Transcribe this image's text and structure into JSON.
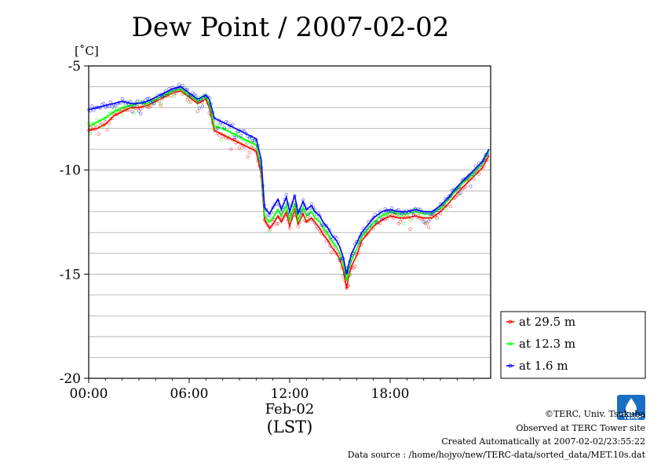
{
  "chart_data": {
    "type": "line",
    "title": "Dew Point / 2007-02-02",
    "ylabel": "[˚C]",
    "xlabel": "(LST)",
    "x_date_label": "Feb-02",
    "ylim": [
      -20,
      -5
    ],
    "xlim_hours": [
      0,
      24
    ],
    "y_ticks": [
      "-5",
      "-10",
      "-15",
      "-20"
    ],
    "y_tick_values": [
      -5,
      -10,
      -15,
      -20
    ],
    "x_ticks": [
      "00:00",
      "06:00",
      "12:00",
      "18:00"
    ],
    "x_tick_values": [
      0,
      6,
      12,
      18
    ],
    "grid": true,
    "legend_position": "bottom-right-outside",
    "x": [
      0,
      0.5,
      1,
      1.5,
      2,
      2.5,
      3,
      3.5,
      4,
      4.5,
      5,
      5.5,
      6,
      6.5,
      7,
      7.2,
      7.5,
      8,
      8.5,
      9,
      9.5,
      10,
      10.3,
      10.5,
      10.8,
      11,
      11.3,
      11.5,
      11.8,
      12,
      12.3,
      12.5,
      12.8,
      13,
      13.3,
      13.5,
      13.8,
      14,
      14.3,
      14.5,
      14.8,
      15,
      15.2,
      15.4,
      15.5,
      15.7,
      16,
      16.3,
      16.5,
      17,
      17.5,
      18,
      18.5,
      19,
      19.5,
      20,
      20.5,
      21,
      21.5,
      22,
      22.5,
      23,
      23.5,
      23.9
    ],
    "series": [
      {
        "name": "at 29.5 m",
        "color": "#ff0000",
        "values": [
          -8.1,
          -8.0,
          -7.8,
          -7.4,
          -7.2,
          -7.0,
          -7.0,
          -6.9,
          -6.7,
          -6.5,
          -6.3,
          -6.2,
          -6.5,
          -6.8,
          -6.6,
          -7.0,
          -8.1,
          -8.3,
          -8.5,
          -8.7,
          -8.9,
          -9.1,
          -10.2,
          -12.4,
          -12.8,
          -12.6,
          -12.2,
          -12.5,
          -12.0,
          -12.7,
          -11.9,
          -12.6,
          -12.1,
          -12.5,
          -12.3,
          -12.5,
          -12.8,
          -13.1,
          -13.4,
          -13.7,
          -14.0,
          -14.3,
          -14.8,
          -15.7,
          -15.2,
          -14.6,
          -14.1,
          -13.4,
          -13.2,
          -12.7,
          -12.4,
          -12.2,
          -12.3,
          -12.3,
          -12.2,
          -12.3,
          -12.3,
          -12.0,
          -11.6,
          -11.1,
          -10.7,
          -10.3,
          -9.9,
          -9.3
        ]
      },
      {
        "name": "at 12.3 m",
        "color": "#00ff00",
        "values": [
          -7.9,
          -7.7,
          -7.5,
          -7.2,
          -7.0,
          -6.9,
          -6.8,
          -6.8,
          -6.6,
          -6.4,
          -6.2,
          -6.1,
          -6.4,
          -6.7,
          -6.5,
          -6.8,
          -7.9,
          -8.0,
          -8.2,
          -8.4,
          -8.6,
          -8.8,
          -9.9,
          -12.2,
          -12.5,
          -12.3,
          -11.9,
          -12.2,
          -11.7,
          -12.4,
          -11.6,
          -12.4,
          -11.8,
          -12.2,
          -12.0,
          -12.3,
          -12.5,
          -12.8,
          -13.1,
          -13.4,
          -13.7,
          -14.0,
          -14.5,
          -15.3,
          -14.9,
          -14.3,
          -13.8,
          -13.2,
          -13.0,
          -12.5,
          -12.2,
          -12.0,
          -12.1,
          -12.1,
          -12.0,
          -12.1,
          -12.1,
          -11.8,
          -11.4,
          -10.9,
          -10.5,
          -10.1,
          -9.7,
          -9.1
        ]
      },
      {
        "name": "at 1.6 m",
        "color": "#0000ff",
        "values": [
          -7.1,
          -7.0,
          -6.9,
          -6.8,
          -6.7,
          -6.8,
          -6.8,
          -6.7,
          -6.5,
          -6.3,
          -6.1,
          -6.0,
          -6.3,
          -6.6,
          -6.4,
          -6.6,
          -7.5,
          -7.7,
          -7.9,
          -8.1,
          -8.3,
          -8.5,
          -9.5,
          -11.8,
          -12.1,
          -11.8,
          -11.4,
          -11.9,
          -11.3,
          -12.0,
          -11.2,
          -12.1,
          -11.5,
          -11.9,
          -11.7,
          -12.0,
          -12.2,
          -12.5,
          -12.8,
          -13.1,
          -13.4,
          -13.7,
          -14.2,
          -15.0,
          -14.6,
          -14.0,
          -13.5,
          -13.0,
          -12.8,
          -12.3,
          -12.0,
          -11.9,
          -12.0,
          -12.0,
          -11.9,
          -12.0,
          -12.0,
          -11.7,
          -11.3,
          -10.8,
          -10.4,
          -10.0,
          -9.6,
          -9.0
        ]
      }
    ]
  },
  "footer": {
    "copyright": "©TERC, Univ. Tsukuba",
    "observed": "Observed at TERC Tower site",
    "created": "Created Automatically at 2007-02-02/23:55:22",
    "source": "Data source : /home/hojyo/new/TERC-data/sorted_data/MET.10s.dat"
  },
  "logo": {
    "text": "TERC",
    "colors": {
      "primary": "#1a6fc4",
      "light": "#ffffff"
    }
  }
}
